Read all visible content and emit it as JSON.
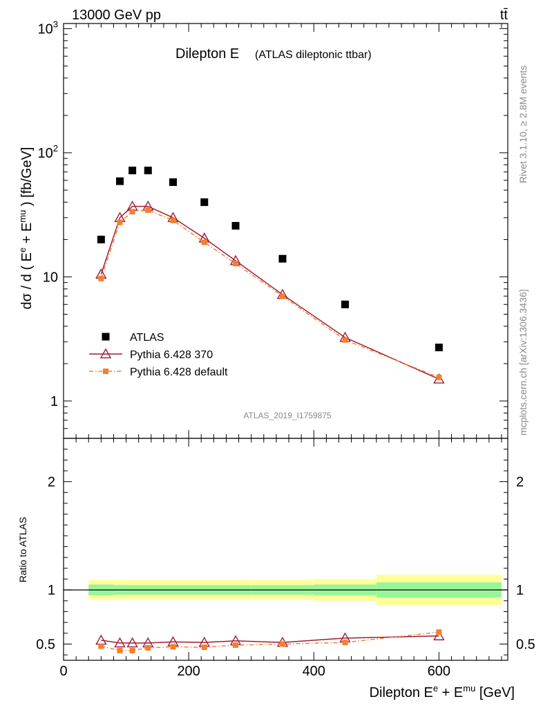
{
  "header": {
    "energy_label": "13000 GeV pp",
    "process_label": "tt̄"
  },
  "side_labels": {
    "rivet": "Rivet 3.1.10, ≥ 2.8M events",
    "mcplots": "mcplots.cern.ch [arXiv:1306.3436]"
  },
  "watermark": "ATLAS_2019_I1759875",
  "chart_data": [
    {
      "type": "scatter",
      "panel": "main",
      "title": "Dilepton E",
      "subtitle": "(ATLAS dileptonic ttbar)",
      "ylabel": {
        "base": "dσ / d ( E",
        "sup1": "e",
        "mid": " + E",
        "sup2": "mu",
        "end": " ) [fb/GeV]"
      },
      "yscale": "log",
      "xlim": [
        0,
        710
      ],
      "ylim": [
        0.5,
        1100
      ],
      "yticks": [
        {
          "value": 1,
          "label": "1"
        },
        {
          "value": 10,
          "label": "10"
        },
        {
          "value": 100,
          "label": "10",
          "exp": "2"
        },
        {
          "value": 1000,
          "label": "10",
          "exp": "3"
        }
      ],
      "legend_position": "lower-left",
      "series": [
        {
          "name": "ATLAS",
          "color": "#000000",
          "marker": "square",
          "line": "none",
          "x": [
            60,
            90,
            110,
            135,
            175,
            225,
            275,
            350,
            450,
            600
          ],
          "y": [
            20,
            59,
            72,
            72,
            58,
            40,
            25.8,
            14,
            6,
            2.7
          ]
        },
        {
          "name": "Pythia 6.428 370",
          "color": "#9e1b34",
          "marker": "triangle-open",
          "line": "solid",
          "x": [
            60,
            90,
            110,
            135,
            175,
            225,
            275,
            350,
            450,
            600
          ],
          "y": [
            10.5,
            30,
            37,
            37,
            30,
            20.5,
            13.5,
            7.2,
            3.25,
            1.5
          ]
        },
        {
          "name": "Pythia 6.428 default",
          "color": "#f08030",
          "marker": "square-small",
          "line": "dashdot",
          "x": [
            60,
            90,
            110,
            135,
            175,
            225,
            275,
            350,
            450,
            600
          ],
          "y": [
            9.7,
            27.5,
            33.5,
            34.5,
            28.5,
            19,
            12.8,
            7,
            3.1,
            1.55
          ]
        }
      ]
    },
    {
      "type": "scatter",
      "panel": "ratio",
      "ylabel": "Ratio to ATLAS",
      "xlabel": {
        "base": "Dilepton E",
        "sup1": "e",
        "mid": " + E",
        "sup2": "mu",
        "end": " [GeV]"
      },
      "xlim": [
        0,
        710
      ],
      "ylim": [
        0.35,
        2.4
      ],
      "xticks": [
        0,
        200,
        400,
        600
      ],
      "yticks": [
        0.5,
        1,
        2
      ],
      "bands": [
        {
          "x0": 40,
          "x1": 80,
          "yellow": 0.09,
          "green": 0.05
        },
        {
          "x0": 80,
          "x1": 300,
          "yellow": 0.09,
          "green": 0.045
        },
        {
          "x0": 300,
          "x1": 400,
          "yellow": 0.09,
          "green": 0.045
        },
        {
          "x0": 400,
          "x1": 500,
          "yellow": 0.1,
          "green": 0.05
        },
        {
          "x0": 500,
          "x1": 700,
          "yellow": 0.14,
          "green": 0.07
        }
      ],
      "series": [
        {
          "name": "Pythia 6.428 370",
          "color": "#9e1b34",
          "marker": "triangle-open",
          "line": "solid",
          "x": [
            60,
            90,
            110,
            135,
            175,
            225,
            275,
            350,
            450,
            600
          ],
          "y": [
            0.535,
            0.51,
            0.51,
            0.51,
            0.52,
            0.515,
            0.53,
            0.515,
            0.555,
            0.575
          ]
        },
        {
          "name": "Pythia 6.428 default",
          "color": "#f08030",
          "marker": "square-small",
          "line": "dashdot",
          "x": [
            60,
            90,
            110,
            135,
            175,
            225,
            275,
            350,
            450,
            600
          ],
          "y": [
            0.48,
            0.44,
            0.44,
            0.465,
            0.475,
            0.47,
            0.49,
            0.5,
            0.515,
            0.61
          ]
        }
      ]
    }
  ]
}
